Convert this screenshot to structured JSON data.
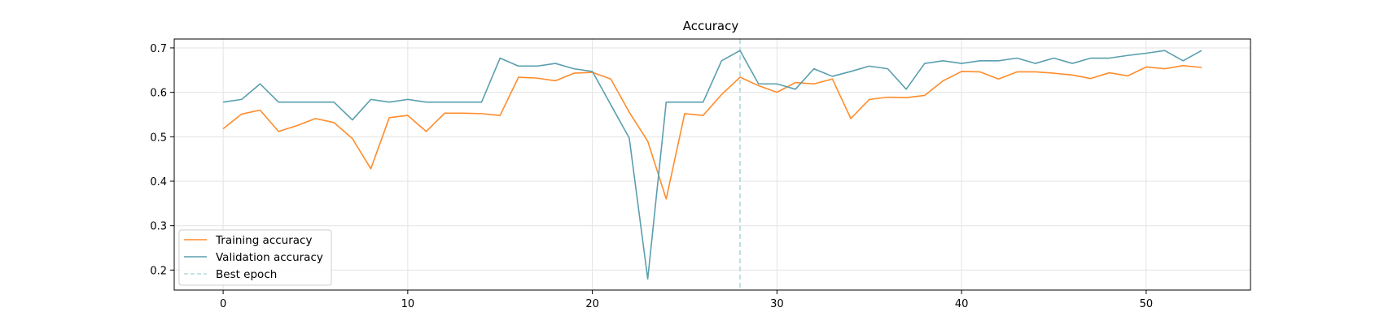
{
  "chart_data": {
    "type": "line",
    "title": "Accuracy",
    "xlabel": "",
    "ylabel": "",
    "xlim": [
      -2.65,
      55.65
    ],
    "ylim": [
      0.155,
      0.72
    ],
    "xticks": [
      0,
      10,
      20,
      30,
      40,
      50
    ],
    "xtick_labels": [
      "0",
      "10",
      "20",
      "30",
      "40",
      "50"
    ],
    "yticks": [
      0.2,
      0.3,
      0.4,
      0.5,
      0.6,
      0.7
    ],
    "ytick_labels": [
      "0.2",
      "0.3",
      "0.4",
      "0.5",
      "0.6",
      "0.7"
    ],
    "grid": true,
    "legend_position": "lower-left",
    "x": [
      0,
      1,
      2,
      3,
      4,
      5,
      6,
      7,
      8,
      9,
      10,
      11,
      12,
      13,
      14,
      15,
      16,
      17,
      18,
      19,
      20,
      21,
      22,
      23,
      24,
      25,
      26,
      27,
      28,
      29,
      30,
      31,
      32,
      33,
      34,
      35,
      36,
      37,
      38,
      39,
      40,
      41,
      42,
      43,
      44,
      45,
      46,
      47,
      48,
      49,
      50,
      51,
      52,
      53
    ],
    "series": [
      {
        "name": "Training accuracy",
        "color": "#ff8c2a",
        "values": [
          0.518,
          0.551,
          0.56,
          0.512,
          0.525,
          0.541,
          0.532,
          0.496,
          0.428,
          0.543,
          0.548,
          0.512,
          0.553,
          0.553,
          0.552,
          0.548,
          0.634,
          0.632,
          0.626,
          0.643,
          0.645,
          0.63,
          0.555,
          0.49,
          0.36,
          0.552,
          0.548,
          0.595,
          0.634,
          0.615,
          0.6,
          0.622,
          0.619,
          0.63,
          0.541,
          0.584,
          0.589,
          0.588,
          0.593,
          0.626,
          0.647,
          0.646,
          0.63,
          0.646,
          0.646,
          0.643,
          0.639,
          0.631,
          0.644,
          0.637,
          0.657,
          0.653,
          0.66,
          0.656
        ]
      },
      {
        "name": "Validation accuracy",
        "color": "#5a9fae",
        "values": [
          0.578,
          0.584,
          0.619,
          0.578,
          0.578,
          0.578,
          0.578,
          0.538,
          0.584,
          0.578,
          0.584,
          0.578,
          0.578,
          0.578,
          0.578,
          0.677,
          0.659,
          0.659,
          0.665,
          0.653,
          0.647,
          0.572,
          0.497,
          0.18,
          0.578,
          0.578,
          0.578,
          0.671,
          0.694,
          0.619,
          0.619,
          0.607,
          0.653,
          0.636,
          0.647,
          0.659,
          0.653,
          0.607,
          0.665,
          0.671,
          0.665,
          0.671,
          0.671,
          0.677,
          0.665,
          0.677,
          0.665,
          0.677,
          0.677,
          0.683,
          0.688,
          0.694,
          0.671,
          0.694
        ]
      }
    ],
    "best_epoch": {
      "label": "Best epoch",
      "x": 28,
      "color": "#b0d8dc"
    }
  }
}
